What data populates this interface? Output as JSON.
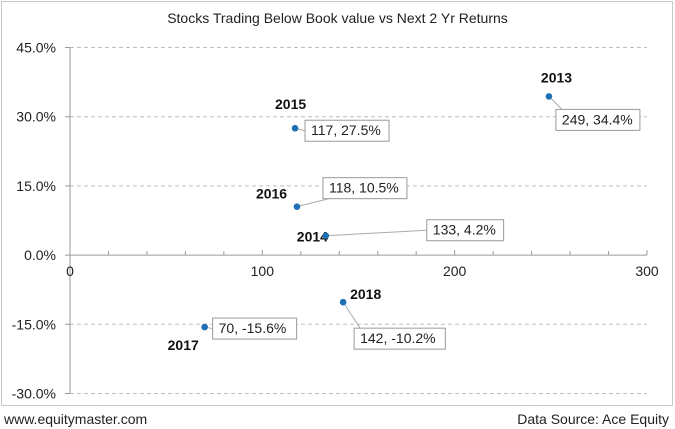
{
  "footer": {
    "source_left": "www.equitymaster.com",
    "source_right": "Data Source: Ace Equity"
  },
  "chart_data": {
    "type": "scatter",
    "title": "Stocks Trading Below Book value vs Next 2 Yr Returns",
    "xlabel": "",
    "ylabel": "",
    "xlim": [
      0,
      300
    ],
    "ylim": [
      -30,
      45
    ],
    "x_ticks": [
      0,
      100,
      200,
      300
    ],
    "x_tick_labels": [
      "0",
      "100",
      "200",
      "300"
    ],
    "y_ticks": [
      45,
      30,
      15,
      0,
      -15,
      -30
    ],
    "y_tick_labels": [
      "45.0%",
      "30.0%",
      "15.0%",
      "0.0%",
      "-15.0%",
      "-30.0%"
    ],
    "grid": "horizontal dashed",
    "marker_color": "#1f6fb4",
    "points": [
      {
        "year": "2013",
        "x": 249,
        "y": 34.4,
        "label": "249, 34.4%"
      },
      {
        "year": "2014",
        "x": 133,
        "y": 4.2,
        "label": "133, 4.2%"
      },
      {
        "year": "2015",
        "x": 117,
        "y": 27.5,
        "label": "117, 27.5%"
      },
      {
        "year": "2016",
        "x": 118,
        "y": 10.5,
        "label": "118, 10.5%"
      },
      {
        "year": "2017",
        "x": 70,
        "y": -15.6,
        "label": "70, -15.6%"
      },
      {
        "year": "2018",
        "x": 142,
        "y": -10.2,
        "label": "142, -10.2%"
      }
    ]
  }
}
